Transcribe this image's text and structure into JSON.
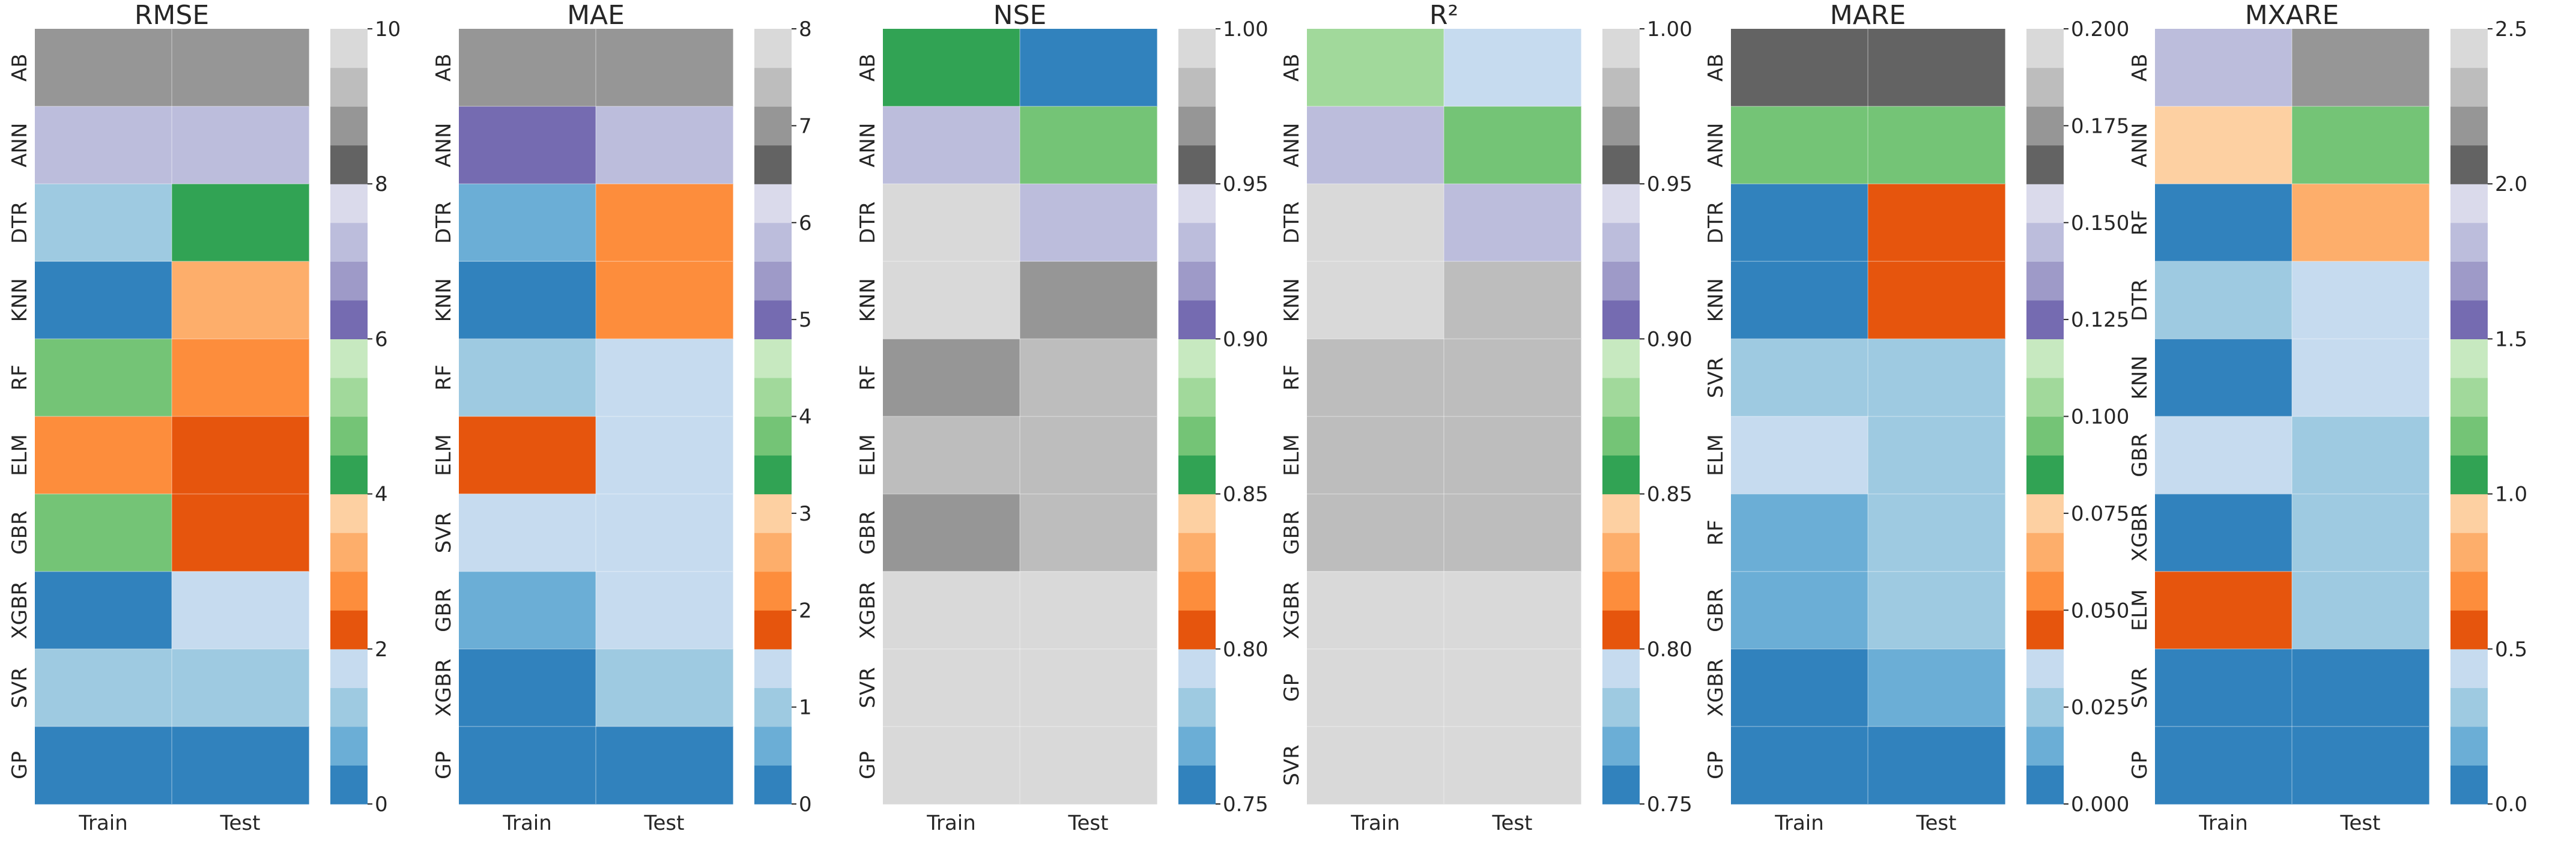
{
  "figure": {
    "colormap": [
      "#3182bd",
      "#6baed6",
      "#9ecae1",
      "#c6dbef",
      "#e6550d",
      "#fd8d3c",
      "#fdae6b",
      "#fdd0a2",
      "#31a354",
      "#74c476",
      "#a1d99b",
      "#c7e9c0",
      "#756bb1",
      "#9e9ac8",
      "#bcbddc",
      "#dadaeb",
      "#636363",
      "#969696",
      "#bdbdbd",
      "#d9d9d9"
    ]
  },
  "chart_data": [
    {
      "type": "heatmap",
      "title": "RMSE",
      "xlabel": "",
      "ylabel": "",
      "columns": [
        "Train",
        "Test"
      ],
      "rows": [
        "AB",
        "ANN",
        "DTR",
        "KNN",
        "RF",
        "ELM",
        "GBR",
        "XGBR",
        "SVR",
        "GP"
      ],
      "values": [
        [
          8.7,
          8.7
        ],
        [
          7.0,
          7.0
        ],
        [
          1.3,
          4.3
        ],
        [
          0.3,
          3.3
        ],
        [
          4.7,
          2.7
        ],
        [
          2.8,
          2.3
        ],
        [
          4.7,
          2.3
        ],
        [
          0.3,
          1.8
        ],
        [
          1.3,
          1.3
        ],
        [
          0.3,
          0.3
        ]
      ],
      "vmin": 0,
      "vmax": 10,
      "colorbar_ticks": [
        "0",
        "2",
        "4",
        "6",
        "8",
        "10"
      ]
    },
    {
      "type": "heatmap",
      "title": "MAE",
      "xlabel": "",
      "ylabel": "",
      "columns": [
        "Train",
        "Test"
      ],
      "rows": [
        "AB",
        "ANN",
        "DTR",
        "KNN",
        "RF",
        "ELM",
        "SVR",
        "GBR",
        "XGBR",
        "GP"
      ],
      "values": [
        [
          7.0,
          7.0
        ],
        [
          5.0,
          5.7
        ],
        [
          0.7,
          2.2
        ],
        [
          0.2,
          2.2
        ],
        [
          1.0,
          1.4
        ],
        [
          1.8,
          1.4
        ],
        [
          1.4,
          1.4
        ],
        [
          0.7,
          1.4
        ],
        [
          0.2,
          1.0
        ],
        [
          0.2,
          0.2
        ]
      ],
      "vmin": 0,
      "vmax": 8,
      "colorbar_ticks": [
        "0",
        "1",
        "2",
        "3",
        "4",
        "5",
        "6",
        "7",
        "8"
      ]
    },
    {
      "type": "heatmap",
      "title": "NSE",
      "xlabel": "",
      "ylabel": "",
      "columns": [
        "Train",
        "Test"
      ],
      "rows": [
        "AB",
        "ANN",
        "DTR",
        "KNN",
        "RF",
        "ELM",
        "GBR",
        "XGBR",
        "SVR",
        "GP"
      ],
      "values": [
        [
          0.862,
          0.755
        ],
        [
          0.925,
          0.873
        ],
        [
          0.99,
          0.935
        ],
        [
          0.99,
          0.963
        ],
        [
          0.963,
          0.975
        ],
        [
          0.975,
          0.975
        ],
        [
          0.963,
          0.975
        ],
        [
          0.99,
          0.99
        ],
        [
          0.99,
          0.99
        ],
        [
          0.99,
          0.99
        ]
      ],
      "vmin": 0.75,
      "vmax": 1.0,
      "colorbar_ticks": [
        "0.75",
        "0.80",
        "0.85",
        "0.90",
        "0.95",
        "1.00"
      ]
    },
    {
      "type": "heatmap",
      "title": "R²",
      "xlabel": "",
      "ylabel": "",
      "columns": [
        "Train",
        "Test"
      ],
      "rows": [
        "AB",
        "ANN",
        "DTR",
        "KNN",
        "RF",
        "ELM",
        "GBR",
        "XGBR",
        "GP",
        "SVR"
      ],
      "values": [
        [
          0.887,
          0.793
        ],
        [
          0.925,
          0.873
        ],
        [
          0.99,
          0.935
        ],
        [
          0.99,
          0.975
        ],
        [
          0.975,
          0.987
        ],
        [
          0.987,
          0.987
        ],
        [
          0.975,
          0.987
        ],
        [
          0.99,
          0.99
        ],
        [
          0.99,
          0.99
        ],
        [
          0.99,
          0.99
        ]
      ],
      "vmin": 0.75,
      "vmax": 1.0,
      "colorbar_ticks": [
        "0.75",
        "0.80",
        "0.85",
        "0.90",
        "0.95",
        "1.00"
      ]
    },
    {
      "type": "heatmap",
      "title": "MARE",
      "xlabel": "",
      "ylabel": "",
      "columns": [
        "Train",
        "Test"
      ],
      "rows": [
        "AB",
        "ANN",
        "DTR",
        "KNN",
        "SVR",
        "ELM",
        "RF",
        "GBR",
        "XGBR",
        "GP"
      ],
      "values": [
        [
          0.165,
          0.165
        ],
        [
          0.095,
          0.095
        ],
        [
          0.005,
          0.045
        ],
        [
          0.005,
          0.045
        ],
        [
          0.025,
          0.025
        ],
        [
          0.035,
          0.025
        ],
        [
          0.015,
          0.025
        ],
        [
          0.015,
          0.025
        ],
        [
          0.005,
          0.015
        ],
        [
          0.005,
          0.005
        ]
      ],
      "vmin": 0.0,
      "vmax": 0.2,
      "colorbar_ticks": [
        "0.000",
        "0.025",
        "0.050",
        "0.075",
        "0.100",
        "0.125",
        "0.150",
        "0.175",
        "0.200"
      ]
    },
    {
      "type": "heatmap",
      "title": "MXARE",
      "xlabel": "",
      "ylabel": "",
      "columns": [
        "Train",
        "Test"
      ],
      "rows": [
        "AB",
        "ANN",
        "RF",
        "DTR",
        "KNN",
        "GBR",
        "XGBR",
        "ELM",
        "SVR",
        "GP"
      ],
      "values": [
        [
          1.81,
          2.19
        ],
        [
          0.94,
          1.19
        ],
        [
          0.06,
          0.81
        ],
        [
          0.31,
          0.44
        ],
        [
          0.06,
          0.44
        ],
        [
          0.44,
          0.31
        ],
        [
          0.06,
          0.31
        ],
        [
          0.56,
          0.31
        ],
        [
          0.06,
          0.06
        ],
        [
          0.06,
          0.06
        ]
      ],
      "vmin": 0.0,
      "vmax": 2.5,
      "colorbar_ticks": [
        "0.0",
        "0.5",
        "1.0",
        "1.5",
        "2.0",
        "2.5"
      ]
    }
  ]
}
